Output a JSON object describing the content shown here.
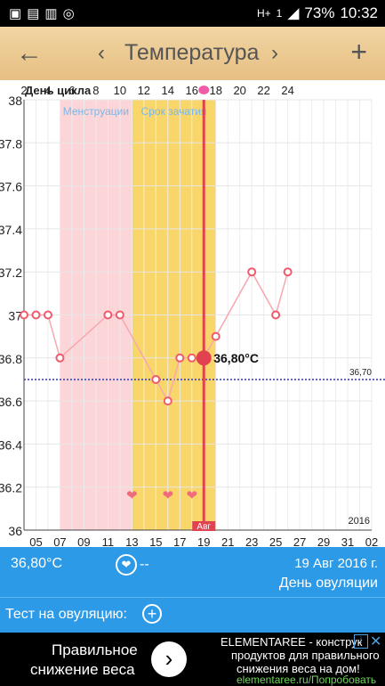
{
  "status_bar": {
    "left_icons": [
      "photo-icon",
      "gallery-icon",
      "briefcase-icon",
      "instagram-icon"
    ],
    "network": "H+",
    "sim": "1",
    "battery": "73%",
    "time": "10:32"
  },
  "header": {
    "title": "Температура",
    "back_icon": "arrow-left-icon",
    "prev_icon": "chevron-left-icon",
    "next_icon": "chevron-right-icon",
    "add_icon": "plus-icon"
  },
  "chart_data": {
    "type": "line",
    "cycle_label": "День цикла",
    "cycle_ticks": [
      "2",
      "4",
      "6",
      "8",
      "10",
      "12",
      "14",
      "16",
      "18",
      "20",
      "22",
      "24"
    ],
    "menstruation_label": "Менструации",
    "fertile_label": "Срок зачатия",
    "y_ticks": [
      "38",
      "37.8",
      "37.6",
      "37.4",
      "37.2",
      "37",
      "36.8",
      "36.6",
      "36.4",
      "36.2",
      "36"
    ],
    "ylim": [
      36,
      38
    ],
    "x_tick_labels": [
      "05",
      "07",
      "09",
      "11",
      "13",
      "15",
      "17",
      "19",
      "21",
      "23",
      "25",
      "27",
      "29",
      "31",
      "02"
    ],
    "x_start_day": 4,
    "x_end_day": 33,
    "month_label": "Авг",
    "year_label": "2016",
    "coverline": 36.7,
    "coverline_label": "36,70",
    "menstruation_range": [
      7,
      13
    ],
    "fertile_range": [
      13,
      20
    ],
    "ovulation_day": 19,
    "selected": {
      "day": 19,
      "value": 36.8,
      "label": "36,80°C"
    },
    "points": [
      {
        "day": 4,
        "value": 37.0
      },
      {
        "day": 5,
        "value": 37.0
      },
      {
        "day": 6,
        "value": 37.0
      },
      {
        "day": 7,
        "value": 36.8
      },
      {
        "day": 11,
        "value": 37.0
      },
      {
        "day": 12,
        "value": 37.0
      },
      {
        "day": 15,
        "value": 36.7
      },
      {
        "day": 16,
        "value": 36.6
      },
      {
        "day": 17,
        "value": 36.8
      },
      {
        "day": 18,
        "value": 36.8
      },
      {
        "day": 19,
        "value": 36.8
      },
      {
        "day": 20,
        "value": 36.9
      },
      {
        "day": 23,
        "value": 37.2
      },
      {
        "day": 25,
        "value": 37.0
      },
      {
        "day": 26,
        "value": 37.2
      }
    ],
    "heart_days": [
      13,
      16,
      18
    ],
    "colors": {
      "menstruation": "#fcd5d8",
      "fertile": "#f8d669",
      "line": "#f7a8ae",
      "marker": "#ef5b6a",
      "ovulation": "#e2424f",
      "coverline": "#2a37c9"
    }
  },
  "info_bar": {
    "temperature": "36,80°C",
    "heart_icon": "heart-circle-icon",
    "note": "--",
    "date": "19 Авг 2016 г.",
    "phase": "День овуляции"
  },
  "test_bar": {
    "label": "Тест на овуляцию:",
    "add_icon": "plus-circle-icon"
  },
  "ad": {
    "headline_1": "Правильное",
    "headline_2": "снижение веса",
    "text_1": "ELEMENTAREE - конструк",
    "text_2": "продуктов для правильного",
    "text_3": "снижения веса на дом!",
    "link": "elementaree.ru/Попробовать",
    "go_icon": "chevron-right-icon"
  }
}
